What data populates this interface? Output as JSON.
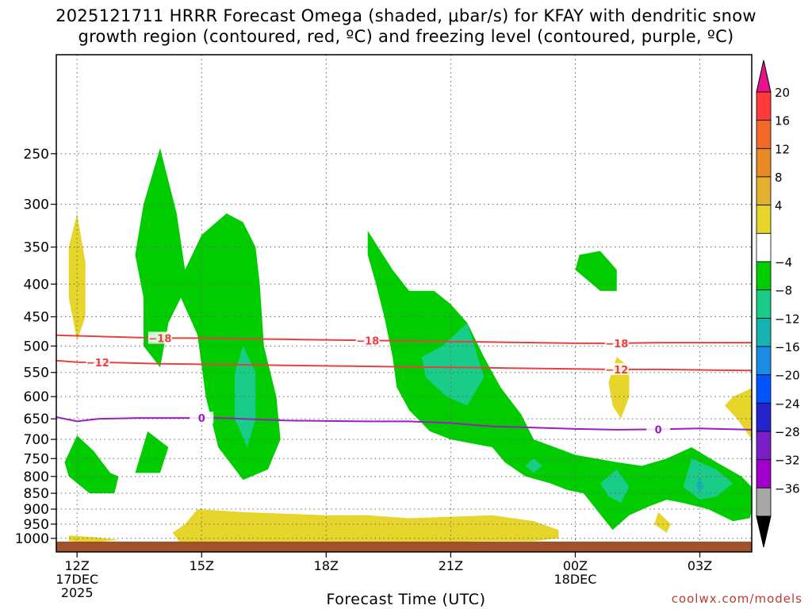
{
  "title": {
    "line1": "2025121711 HRRR Forecast Omega (shaded, μbar/s) for KFAY with dendritic snow",
    "line2": "growth region (contoured, red, ºC) and freezing level (contoured, purple, ºC)"
  },
  "credit": "coolwx.com/models",
  "chart_data": {
    "type": "heatmap",
    "xlabel": "Forecast Time (UTC)",
    "ylabel": "",
    "x_range_hours": [
      11.5,
      28.25
    ],
    "y_range_hPa": [
      1050,
      175
    ],
    "y_scale": "log-pressure",
    "grid": true,
    "x_ticks": [
      {
        "hour": 12,
        "lines": [
          "12Z",
          "17DEC",
          "2025"
        ]
      },
      {
        "hour": 15,
        "lines": [
          "15Z"
        ]
      },
      {
        "hour": 18,
        "lines": [
          "18Z"
        ]
      },
      {
        "hour": 21,
        "lines": [
          "21Z"
        ]
      },
      {
        "hour": 24,
        "lines": [
          "00Z",
          "18DEC"
        ]
      },
      {
        "hour": 27,
        "lines": [
          "03Z"
        ]
      }
    ],
    "y_ticks": [
      250,
      300,
      350,
      400,
      450,
      500,
      550,
      600,
      650,
      700,
      750,
      800,
      850,
      900,
      950,
      1000
    ],
    "colorbar": {
      "labels": [
        "20",
        "16",
        "12",
        "8",
        "4",
        "−4",
        "−8",
        "−12",
        "−16",
        "−20",
        "−24",
        "−28",
        "−32",
        "−36"
      ],
      "colors": [
        "#ff3a3a",
        "#f26a2a",
        "#e88a25",
        "#e2b030",
        "#e6d62c",
        "#ffffff",
        "#00cc00",
        "#19cc88",
        "#19b2b2",
        "#1a8ce6",
        "#0055ff",
        "#2424cc",
        "#7a1fc8",
        "#a000c8",
        "#a7a7a7"
      ],
      "top_cap": "#e8138a",
      "bottom_cap": "#000000"
    },
    "regions": [
      {
        "name": "upward omega -4 to -8",
        "color": "#00cc00",
        "polys": [
          [
            [
              14.0,
              245
            ],
            [
              14.4,
              310
            ],
            [
              14.6,
              380
            ],
            [
              15.0,
              335
            ],
            [
              15.6,
              310
            ],
            [
              16.0,
              320
            ],
            [
              16.3,
              350
            ],
            [
              16.4,
              400
            ],
            [
              16.5,
              500
            ],
            [
              16.8,
              600
            ],
            [
              16.9,
              700
            ],
            [
              16.6,
              780
            ],
            [
              16.0,
              810
            ],
            [
              15.4,
              720
            ],
            [
              15.1,
              600
            ],
            [
              14.9,
              480
            ],
            [
              14.5,
              420
            ],
            [
              14.2,
              460
            ],
            [
              14.0,
              540
            ],
            [
              13.6,
              500
            ],
            [
              13.6,
              420
            ],
            [
              13.4,
              360
            ],
            [
              13.6,
              300
            ],
            [
              14.0,
              245
            ]
          ],
          [
            [
              19.0,
              330
            ],
            [
              19.6,
              380
            ],
            [
              20.0,
              410
            ],
            [
              20.6,
              410
            ],
            [
              21.0,
              430
            ],
            [
              21.4,
              460
            ],
            [
              21.8,
              520
            ],
            [
              22.2,
              580
            ],
            [
              22.7,
              640
            ],
            [
              23.0,
              700
            ],
            [
              24.0,
              740
            ],
            [
              25.0,
              760
            ],
            [
              25.6,
              770
            ],
            [
              26.2,
              750
            ],
            [
              26.8,
              720
            ],
            [
              27.4,
              760
            ],
            [
              28.0,
              800
            ],
            [
              28.4,
              850
            ],
            [
              28.2,
              930
            ],
            [
              27.8,
              940
            ],
            [
              27.2,
              900
            ],
            [
              26.6,
              880
            ],
            [
              26.2,
              870
            ],
            [
              25.8,
              890
            ],
            [
              25.3,
              920
            ],
            [
              24.9,
              970
            ],
            [
              24.5,
              900
            ],
            [
              24.2,
              850
            ],
            [
              23.8,
              840
            ],
            [
              23.4,
              820
            ],
            [
              22.8,
              800
            ],
            [
              22.3,
              760
            ],
            [
              22.0,
              720
            ],
            [
              21.5,
              710
            ],
            [
              21.0,
              700
            ],
            [
              20.5,
              680
            ],
            [
              20.0,
              630
            ],
            [
              19.7,
              580
            ],
            [
              19.6,
              520
            ],
            [
              19.4,
              450
            ],
            [
              19.2,
              400
            ],
            [
              19.0,
              360
            ],
            [
              19.0,
              330
            ]
          ],
          [
            [
              12.0,
              690
            ],
            [
              12.4,
              730
            ],
            [
              12.8,
              790
            ],
            [
              13.0,
              800
            ],
            [
              12.9,
              850
            ],
            [
              12.3,
              850
            ],
            [
              11.8,
              800
            ],
            [
              11.7,
              760
            ],
            [
              12.0,
              690
            ]
          ],
          [
            [
              13.7,
              680
            ],
            [
              14.2,
              720
            ],
            [
              14.0,
              790
            ],
            [
              13.4,
              790
            ],
            [
              13.7,
              680
            ]
          ],
          [
            [
              24.1,
              360
            ],
            [
              24.6,
              355
            ],
            [
              25.0,
              380
            ],
            [
              25.0,
              410
            ],
            [
              24.6,
              410
            ],
            [
              24.0,
              380
            ],
            [
              24.1,
              360
            ]
          ]
        ]
      },
      {
        "name": "upward omega -8 to -12",
        "color": "#19cc88",
        "polys": [
          [
            [
              16.0,
              500
            ],
            [
              16.3,
              550
            ],
            [
              16.3,
              650
            ],
            [
              16.1,
              720
            ],
            [
              15.8,
              650
            ],
            [
              15.8,
              550
            ],
            [
              16.0,
              500
            ]
          ],
          [
            [
              20.8,
              500
            ],
            [
              21.4,
              460
            ],
            [
              21.8,
              560
            ],
            [
              21.4,
              620
            ],
            [
              20.9,
              600
            ],
            [
              20.4,
              560
            ],
            [
              20.3,
              520
            ],
            [
              20.8,
              500
            ]
          ],
          [
            [
              23.0,
              750
            ],
            [
              23.2,
              770
            ],
            [
              23.0,
              790
            ],
            [
              22.8,
              770
            ],
            [
              23.0,
              750
            ]
          ],
          [
            [
              25.0,
              780
            ],
            [
              25.3,
              830
            ],
            [
              25.1,
              880
            ],
            [
              24.8,
              860
            ],
            [
              24.6,
              820
            ],
            [
              25.0,
              780
            ]
          ],
          [
            [
              26.8,
              750
            ],
            [
              27.4,
              780
            ],
            [
              27.8,
              820
            ],
            [
              27.4,
              860
            ],
            [
              27.0,
              870
            ],
            [
              26.6,
              830
            ],
            [
              26.8,
              750
            ]
          ]
        ]
      },
      {
        "name": "upward omega -12 to -16",
        "color": "#19b2b2",
        "polys": [
          [
            [
              27.0,
              800
            ],
            [
              27.1,
              830
            ],
            [
              27.0,
              850
            ],
            [
              26.9,
              825
            ],
            [
              27.0,
              800
            ]
          ]
        ]
      },
      {
        "name": "downward omega 4 to 8",
        "color": "#e6d62c",
        "polys": [
          [
            [
              12.0,
              310
            ],
            [
              12.2,
              370
            ],
            [
              12.2,
              450
            ],
            [
              12.0,
              490
            ],
            [
              11.8,
              420
            ],
            [
              11.8,
              350
            ],
            [
              12.0,
              310
            ]
          ],
          [
            [
              14.9,
              900
            ],
            [
              16.0,
              910
            ],
            [
              18.0,
              920
            ],
            [
              19.0,
              920
            ],
            [
              20.0,
              930
            ],
            [
              22.0,
              920
            ],
            [
              23.0,
              940
            ],
            [
              23.6,
              970
            ],
            [
              23.6,
              1000
            ],
            [
              23.0,
              1010
            ],
            [
              22.0,
              1010
            ],
            [
              20.0,
              1015
            ],
            [
              18.0,
              1020
            ],
            [
              16.0,
              1025
            ],
            [
              14.5,
              1020
            ],
            [
              14.3,
              980
            ],
            [
              14.6,
              950
            ],
            [
              14.9,
              900
            ]
          ],
          [
            [
              11.8,
              990
            ],
            [
              12.4,
              995
            ],
            [
              13.0,
              1005
            ],
            [
              12.4,
              1015
            ],
            [
              11.8,
              1010
            ],
            [
              11.8,
              990
            ]
          ],
          [
            [
              25.0,
              520
            ],
            [
              25.3,
              540
            ],
            [
              25.3,
              600
            ],
            [
              25.1,
              650
            ],
            [
              24.9,
              620
            ],
            [
              24.8,
              570
            ],
            [
              25.0,
              520
            ]
          ],
          [
            [
              26.0,
              910
            ],
            [
              26.3,
              950
            ],
            [
              26.2,
              980
            ],
            [
              25.9,
              950
            ],
            [
              26.0,
              910
            ]
          ],
          [
            [
              27.8,
              600
            ],
            [
              28.3,
              580
            ],
            [
              28.25,
              580
            ],
            [
              28.25,
              700
            ],
            [
              27.9,
              650
            ],
            [
              27.6,
              620
            ],
            [
              27.8,
              600
            ]
          ]
        ]
      }
    ],
    "contours": [
      {
        "kind": "isotherm",
        "label": "−18",
        "color": "#e84040",
        "points": [
          [
            11.5,
            481
          ],
          [
            13.0,
            484
          ],
          [
            14.0,
            486
          ],
          [
            15.0,
            486
          ],
          [
            16.0,
            487
          ],
          [
            17.0,
            488
          ],
          [
            18.0,
            489
          ],
          [
            19.0,
            490
          ],
          [
            20.0,
            491
          ],
          [
            21.0,
            492
          ],
          [
            22.0,
            493
          ],
          [
            23.0,
            494
          ],
          [
            24.0,
            495
          ],
          [
            25.0,
            495
          ],
          [
            26.0,
            494
          ],
          [
            27.0,
            494
          ],
          [
            28.25,
            494
          ]
        ],
        "label_at": [
          [
            14.0,
            486
          ],
          [
            19.0,
            490
          ],
          [
            25.0,
            495
          ]
        ]
      },
      {
        "kind": "isotherm",
        "label": "−12",
        "color": "#e84040",
        "points": [
          [
            11.5,
            527
          ],
          [
            12.0,
            530
          ],
          [
            13.0,
            531
          ],
          [
            14.0,
            533
          ],
          [
            15.0,
            534
          ],
          [
            16.0,
            535
          ],
          [
            17.0,
            536
          ],
          [
            18.0,
            537
          ],
          [
            19.0,
            538
          ],
          [
            20.0,
            539
          ],
          [
            21.0,
            540
          ],
          [
            22.0,
            541
          ],
          [
            23.0,
            542
          ],
          [
            24.0,
            543
          ],
          [
            25.0,
            544
          ],
          [
            26.0,
            544
          ],
          [
            27.0,
            545
          ],
          [
            28.25,
            546
          ]
        ],
        "label_at": [
          [
            12.5,
            530
          ],
          [
            25.0,
            544
          ]
        ]
      },
      {
        "kind": "freezing-level",
        "label": "0",
        "color": "#9a1dc0",
        "points": [
          [
            11.5,
            646
          ],
          [
            12.0,
            656
          ],
          [
            12.5,
            650
          ],
          [
            13.5,
            648
          ],
          [
            14.5,
            648
          ],
          [
            15.5,
            648
          ],
          [
            16.0,
            650
          ],
          [
            17.0,
            654
          ],
          [
            18.0,
            655
          ],
          [
            19.0,
            656
          ],
          [
            20.0,
            656
          ],
          [
            21.0,
            660
          ],
          [
            22.0,
            668
          ],
          [
            23.0,
            671
          ],
          [
            24.0,
            674
          ],
          [
            25.0,
            676
          ],
          [
            26.0,
            675
          ],
          [
            27.0,
            673
          ],
          [
            28.25,
            676
          ]
        ],
        "label_at": [
          [
            15.0,
            648
          ],
          [
            26.0,
            675
          ]
        ]
      }
    ],
    "terrain_color": "#a0522d"
  }
}
